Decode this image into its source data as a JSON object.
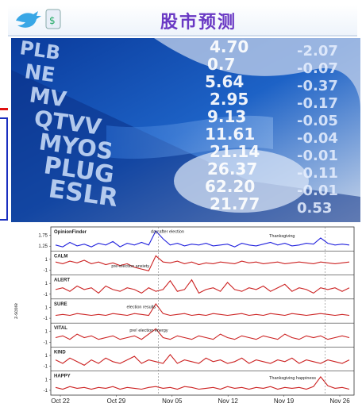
{
  "header": {
    "title": "股市预测"
  },
  "photo": {
    "tickers": [
      "PLB",
      "NE",
      "MV",
      "QTVV",
      "MYOS",
      "PLUG",
      "ESLR"
    ],
    "numbers": [
      "4.70",
      "0.7",
      "5.64",
      "2.95",
      "9.13",
      "11.61",
      "21.14",
      "26.37",
      "62.20",
      "21.77"
    ],
    "changes": [
      "-2.07",
      "-0.07",
      "-0.37",
      "-0.17",
      "-0.05",
      "-0.04",
      "-0.01",
      "-0.11",
      "-0.01",
      "0.53"
    ]
  },
  "chart_data": {
    "type": "line",
    "x_tick_labels": [
      "Oct 22",
      "Oct 29",
      "Nov 05",
      "Nov 12",
      "Nov 19",
      "Nov 26"
    ],
    "y_axis_label": "z-score",
    "panels": [
      {
        "name": "OpinionFinder",
        "color": "#2222dd",
        "ticks": [
          "1.75",
          "1.25"
        ],
        "annotations": [
          "day after election",
          "Thanksgiving"
        ],
        "values": [
          0.2,
          0.1,
          0.35,
          0.15,
          0.25,
          0.1,
          0.3,
          0.2,
          0.4,
          0.1,
          0.3,
          0.2,
          0.35,
          0.2,
          1.0,
          0.55,
          0.2,
          0.3,
          0.15,
          0.25,
          0.2,
          0.3,
          0.15,
          0.2,
          0.25,
          0.1,
          0.3,
          0.2,
          0.15,
          0.25,
          0.35,
          0.2,
          0.3,
          0.15,
          0.2,
          0.3,
          0.25,
          0.6,
          0.3,
          0.2,
          0.25,
          0.2
        ]
      },
      {
        "name": "CALM",
        "color": "#cc2222",
        "ticks": [
          "1",
          "-1"
        ],
        "annotations": [
          "pre-election anxiety"
        ],
        "values": [
          0.6,
          0.5,
          0.65,
          0.55,
          0.7,
          0.5,
          0.6,
          0.45,
          0.55,
          0.4,
          0.5,
          0.3,
          0.2,
          0.1,
          0.95,
          0.6,
          0.55,
          0.65,
          0.5,
          0.6,
          0.45,
          0.55,
          0.5,
          0.6,
          0.55,
          0.5,
          0.65,
          0.55,
          0.6,
          0.5,
          0.55,
          0.6,
          0.5,
          0.55,
          0.6,
          0.55,
          0.5,
          0.6,
          0.55,
          0.5,
          0.55,
          0.6
        ]
      },
      {
        "name": "ALERT",
        "color": "#cc2222",
        "ticks": [
          "1",
          "-1"
        ],
        "annotations": [],
        "values": [
          0.4,
          0.5,
          0.3,
          0.6,
          0.4,
          0.5,
          0.2,
          0.6,
          0.4,
          0.3,
          0.5,
          0.4,
          0.2,
          0.5,
          0.3,
          0.4,
          0.9,
          0.3,
          0.4,
          0.95,
          0.2,
          0.4,
          0.5,
          0.3,
          0.8,
          0.4,
          0.3,
          0.5,
          0.4,
          0.6,
          0.3,
          0.5,
          0.7,
          0.3,
          0.5,
          0.4,
          0.2,
          0.5,
          0.4,
          0.5,
          0.3,
          0.5
        ]
      },
      {
        "name": "SURE",
        "color": "#cc2222",
        "ticks": [
          "1",
          "-1"
        ],
        "annotations": [
          "election results"
        ],
        "values": [
          0.3,
          0.35,
          0.3,
          0.4,
          0.35,
          0.3,
          0.35,
          0.3,
          0.4,
          0.35,
          0.3,
          0.4,
          0.35,
          0.3,
          0.95,
          0.4,
          0.3,
          0.35,
          0.4,
          0.3,
          0.35,
          0.3,
          0.4,
          0.35,
          0.3,
          0.35,
          0.4,
          0.3,
          0.35,
          0.3,
          0.4,
          0.35,
          0.3,
          0.4,
          0.35,
          0.3,
          0.35,
          0.4,
          0.35,
          0.3,
          0.35,
          0.3
        ]
      },
      {
        "name": "VITAL",
        "color": "#cc2222",
        "ticks": [
          "1",
          "-1"
        ],
        "annotations": [
          "pre! election energy"
        ],
        "values": [
          0.4,
          0.5,
          0.3,
          0.6,
          0.4,
          0.5,
          0.3,
          0.4,
          0.5,
          0.3,
          0.4,
          0.5,
          0.3,
          0.6,
          0.9,
          0.4,
          0.3,
          0.5,
          0.4,
          0.3,
          0.5,
          0.4,
          0.3,
          0.6,
          0.4,
          0.3,
          0.5,
          0.4,
          0.3,
          0.5,
          0.4,
          0.3,
          0.6,
          0.4,
          0.3,
          0.5,
          0.4,
          0.5,
          0.3,
          0.4,
          0.5,
          0.4
        ]
      },
      {
        "name": "KIND",
        "color": "#cc2222",
        "ticks": [
          "1",
          "-1"
        ],
        "annotations": [],
        "values": [
          0.5,
          0.3,
          0.6,
          0.4,
          0.2,
          0.5,
          0.3,
          0.6,
          0.4,
          0.3,
          0.5,
          0.7,
          0.3,
          0.5,
          0.4,
          0.3,
          0.8,
          0.3,
          0.5,
          0.4,
          0.3,
          0.6,
          0.4,
          0.5,
          0.3,
          0.4,
          0.6,
          0.3,
          0.5,
          0.4,
          0.3,
          0.5,
          0.4,
          0.6,
          0.3,
          0.5,
          0.4,
          0.3,
          0.5,
          0.4,
          0.3,
          0.5
        ]
      },
      {
        "name": "HAPPY",
        "color": "#cc2222",
        "ticks": [
          "1",
          "-1"
        ],
        "annotations": [
          "Thanksgiving happiness"
        ],
        "values": [
          0.3,
          0.2,
          0.35,
          0.25,
          0.3,
          0.2,
          0.3,
          0.25,
          0.35,
          0.2,
          0.3,
          0.25,
          0.2,
          0.3,
          0.35,
          0.25,
          0.3,
          0.2,
          0.35,
          0.3,
          0.2,
          0.25,
          0.3,
          0.2,
          0.35,
          0.25,
          0.3,
          0.2,
          0.3,
          0.25,
          0.35,
          0.2,
          0.3,
          0.25,
          0.3,
          0.2,
          0.35,
          0.9,
          0.4,
          0.25,
          0.3,
          0.2
        ]
      }
    ]
  }
}
